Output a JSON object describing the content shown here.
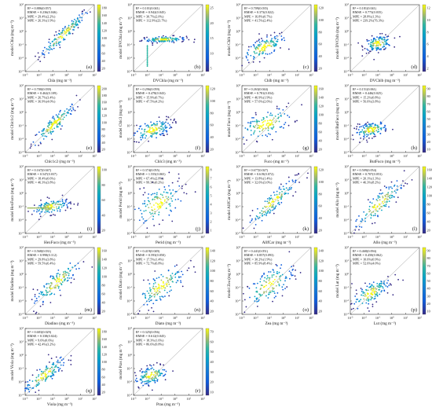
{
  "chart_data": [
    {
      "id": "a",
      "label": "(a)",
      "xlabel": "Chla (mg m⁻³)",
      "ylabel": "model Chla (mg m⁻³)",
      "stats": [
        "R² = 0.886(0.057)",
        "RMSE = 0.236(0.046)",
        "MPE = 29.4%(2.2%)",
        "MPE = 26.3%(1.9%)"
      ],
      "cbar_ticks": [
        "180",
        "160",
        "140",
        "120",
        "100",
        "80",
        "60",
        "40",
        "20"
      ],
      "type": "scatter",
      "x_exp": [
        -3,
        -2,
        -1,
        0,
        1,
        2
      ],
      "y_exp": [
        -3,
        -2,
        -1,
        0,
        1,
        2
      ],
      "cloud": {
        "center": [
          -0.2,
          -0.2
        ],
        "spread": [
          0.9,
          0.9
        ],
        "r": 0.95
      },
      "extra": null
    },
    {
      "id": "b",
      "label": "(b)",
      "xlabel": "DVChla (mg m⁻³)",
      "ylabel": "model DVChla (mg m⁻³)",
      "stats": [
        "R² = 0.101(0.041)",
        "RMSE = 0.942(0.045)",
        "MPE = 30.7%(2.0%)",
        "MPE = 112.9%(23.7%)"
      ],
      "cbar_ticks": [
        "25",
        "20",
        "15",
        "10",
        "5"
      ],
      "type": "scatter",
      "x_exp": [
        -3,
        -2,
        -1,
        0,
        1,
        2
      ],
      "y_exp": [
        -3,
        -2,
        -1,
        0,
        1,
        2
      ],
      "cloud": {
        "center": [
          -0.8,
          -0.6
        ],
        "spread": [
          0.8,
          0.12
        ],
        "r": 0.1
      },
      "extra": "vline"
    },
    {
      "id": "c",
      "label": "(c)",
      "xlabel": "Chlb (mg m⁻³)",
      "ylabel": "model Chlb (mg m⁻³)",
      "stats": [
        "R² = 0.709(0.035)",
        "RMSE = 0.373(0.022)",
        "MPE = 16.8%(0.7%)",
        "MPE = 41.5%(2.4%)"
      ],
      "cbar_ticks": [
        "120",
        "100",
        "80",
        "60",
        "40",
        "20"
      ],
      "type": "scatter",
      "x_exp": [
        -3,
        -2,
        -1,
        0,
        1,
        2
      ],
      "y_exp": [
        -3,
        -2,
        -1,
        0,
        1,
        2
      ],
      "cloud": {
        "center": [
          -1.4,
          -1.2
        ],
        "spread": [
          0.8,
          0.5
        ],
        "r": 0.7
      },
      "extra": null
    },
    {
      "id": "d",
      "label": "(d)",
      "xlabel": "DVChlb (mg m⁻³)",
      "ylabel": "model DVChlb (mg m⁻³)",
      "stats": [
        "R² = 0.181(0.041)",
        "RMSE = 0.773(0.035)",
        "MPE = 28.8%(1.3%)",
        "MPE = 239.2%(76.3%)"
      ],
      "cbar_ticks": [
        "12",
        "10",
        "8",
        "6",
        "4",
        "2"
      ],
      "type": "scatter",
      "x_exp": [
        -3,
        -2,
        -1,
        0,
        1,
        2
      ],
      "y_exp": [
        -3,
        -2,
        -1,
        0,
        1,
        2
      ],
      "cloud": {
        "center": [
          -1.0,
          -0.9
        ],
        "spread": [
          0.5,
          0.3
        ],
        "r": 0.3
      },
      "extra": null
    },
    {
      "id": "e",
      "label": "(e)",
      "xlabel": "Chlc1c2 (mg m⁻³)",
      "ylabel": "model Chlc1c2 (mg m⁻³)",
      "stats": [
        "R² = 0.700(0.039)",
        "RMSE = 0.462(0.109)",
        "MPE = 26.7%(3.4%)",
        "MPE = 36.9%(4.0%)"
      ],
      "cbar_ticks": [
        "200",
        "180",
        "160",
        "140",
        "120",
        "100",
        "80",
        "60",
        "40",
        "20"
      ],
      "type": "scatter",
      "x_exp": [
        -3,
        -2,
        -1,
        0,
        1,
        2
      ],
      "y_exp": [
        -3,
        -2,
        -1,
        0,
        1,
        2
      ],
      "cloud": {
        "center": [
          -0.9,
          -0.9
        ],
        "spread": [
          0.8,
          0.8
        ],
        "r": 0.9
      },
      "extra": null
    },
    {
      "id": "f",
      "label": "(f)",
      "xlabel": "Chlc3 (mg m⁻³)",
      "ylabel": "model Chlc3 (mg m⁻³)",
      "stats": [
        "R² = 0.296(0.059)",
        "RMSE = 0.478(0.043)",
        "MPE = 15.9%(0.7%)",
        "MPE = 47.5%(4.2%)"
      ],
      "cbar_ticks": [
        "120",
        "100",
        "80",
        "60",
        "40",
        "20"
      ],
      "type": "scatter",
      "x_exp": [
        -3,
        -2,
        -1,
        0,
        1,
        2
      ],
      "y_exp": [
        -3,
        -2,
        -1,
        0,
        1,
        2
      ],
      "cloud": {
        "center": [
          -1.6,
          -1.3
        ],
        "spread": [
          0.7,
          0.4
        ],
        "r": 0.5
      },
      "extra": null
    },
    {
      "id": "g",
      "label": "(g)",
      "xlabel": "Fuco (mg m⁻³)",
      "ylabel": "model Fuco (mg m⁻³)",
      "stats": [
        "R² = 0.263(0.044)",
        "RMSE = 0.781(0.034)",
        "MPE = 46.9%(1.9%)",
        "MPE = 57.6%(2.6%)"
      ],
      "cbar_ticks": [
        "160",
        "140",
        "120",
        "100",
        "80",
        "60",
        "40",
        "20"
      ],
      "type": "scatter",
      "x_exp": [
        -3,
        -2,
        -1,
        0,
        1,
        2
      ],
      "y_exp": [
        -3,
        -2,
        -1,
        0,
        1,
        2
      ],
      "cloud": {
        "center": [
          -1.3,
          -0.9
        ],
        "spread": [
          1.0,
          0.6
        ],
        "r": 0.55
      },
      "extra": null
    },
    {
      "id": "h",
      "label": "(h)",
      "xlabel": "ButFuco (mg m⁻³)",
      "ylabel": "model ButFuco (mg m⁻³)",
      "stats": [
        "R² = 0.151(0.061)",
        "RMSE = 0.446(0.025)",
        "MPE = 15.2%(0.8%)",
        "MPE = 56.6%(3.8%)"
      ],
      "cbar_ticks": [
        "90",
        "80",
        "70",
        "60",
        "50",
        "40",
        "30",
        "20",
        "10"
      ],
      "type": "scatter",
      "x_exp": [
        -3,
        -2,
        -1,
        0,
        1,
        2
      ],
      "y_exp": [
        -3,
        -2,
        -1,
        0,
        1,
        2
      ],
      "cloud": {
        "center": [
          -1.5,
          -1.3
        ],
        "spread": [
          0.6,
          0.3
        ],
        "r": 0.4
      },
      "extra": null
    },
    {
      "id": "i",
      "label": "(i)",
      "xlabel": "HexFuco (mg m⁻³)",
      "ylabel": "model HexFuco (mg m⁻³)",
      "stats": [
        "R² = 0.167(0.047)",
        "RMSE = 0.547(0.037)",
        "MPE = 18.4%(0.6%)",
        "MPE = 46.3%(3.8%)"
      ],
      "cbar_ticks": [
        "100",
        "80",
        "60",
        "40",
        "20"
      ],
      "type": "scatter",
      "x_exp": [
        -3,
        -2,
        -1,
        0,
        1,
        2
      ],
      "y_exp": [
        -3,
        -2,
        -1,
        0,
        1,
        2
      ],
      "cloud": {
        "center": [
          -1.1,
          -1.0
        ],
        "spread": [
          0.7,
          0.3
        ],
        "r": 0.4
      },
      "extra": "hline"
    },
    {
      "id": "j",
      "label": "(j)",
      "xlabel": "Perid (mg m⁻³)",
      "ylabel": "model Perid (mg m⁻³)",
      "stats": [
        "R² = 0.374(0.055)",
        "RMSE = 1.555(0.065)",
        "MPE = 67.4%(2.8%)",
        "MPE = 99.3%(0.2%)"
      ],
      "cbar_ticks": [
        "8",
        "7",
        "6",
        "5",
        "4",
        "3",
        "2",
        "1"
      ],
      "type": "scatter",
      "x_exp": [
        -3,
        -2,
        -1,
        0,
        1,
        2
      ],
      "y_exp": [
        -3,
        -2,
        -1,
        0,
        1,
        2
      ],
      "cloud": {
        "center": [
          -1.2,
          -0.8
        ],
        "spread": [
          0.9,
          0.8
        ],
        "r": 0.5
      },
      "extra": null
    },
    {
      "id": "k",
      "label": "(k)",
      "xlabel": "AllfCar (mg m⁻³)",
      "ylabel": "model AllfCar (mg m⁻³)",
      "stats": [
        "R² = 0.677(0.027)",
        "RMSE = 0.619(0.072)",
        "MPE = 13.8%(1.4%)",
        "MPE = 32.6%(3.0%)"
      ],
      "cbar_ticks": [
        "120",
        "100",
        "80",
        "60",
        "40",
        "20"
      ],
      "type": "scatter",
      "x_exp": [
        -3,
        -2,
        -1,
        0,
        1,
        2
      ],
      "y_exp": [
        -3,
        -2,
        -1,
        0,
        1,
        2
      ],
      "cloud": {
        "center": [
          -0.8,
          -0.7
        ],
        "spread": [
          0.9,
          0.9
        ],
        "r": 0.9
      },
      "extra": null
    },
    {
      "id": "l",
      "label": "(l)",
      "xlabel": "Allo (mg m⁻³)",
      "ylabel": "model Allo (mg m⁻³)",
      "stats": [
        "R² = 0.509(0.054)",
        "RMSE = 0.707(0.053)",
        "MPE = 20.1%(1.3%)",
        "MPE = 46.3%(8.2%)"
      ],
      "cbar_ticks": [
        "160",
        "140",
        "120",
        "100",
        "80",
        "60",
        "40",
        "20"
      ],
      "type": "scatter",
      "x_exp": [
        -3,
        -2,
        -1,
        0,
        1,
        2
      ],
      "y_exp": [
        -3,
        -2,
        -1,
        0,
        1,
        2
      ],
      "cloud": {
        "center": [
          -0.9,
          -0.8
        ],
        "spread": [
          0.9,
          0.9
        ],
        "r": 0.85
      },
      "extra": null
    },
    {
      "id": "m",
      "label": "(m)",
      "xlabel": "Diadino (mg m⁻³)",
      "ylabel": "model Diadino (mg m⁻³)",
      "stats": [
        "R² = 0.568(0.031)",
        "RMSE = 0.998(0.112)",
        "MPE = 29.8%(3.8%)",
        "MPE = 59.5%(6.4%)"
      ],
      "cbar_ticks": [
        "160",
        "140",
        "120",
        "100",
        "80",
        "60",
        "40",
        "20"
      ],
      "type": "scatter",
      "x_exp": [
        -3,
        -2,
        -1,
        0,
        1,
        2
      ],
      "y_exp": [
        -3,
        -2,
        -1,
        0,
        1,
        2
      ],
      "cloud": {
        "center": [
          -0.7,
          -0.6
        ],
        "spread": [
          0.9,
          0.9
        ],
        "r": 0.85
      },
      "extra": null
    },
    {
      "id": "n",
      "label": "(n)",
      "xlabel": "Diato (mg m⁻³)",
      "ylabel": "model Diato (mg m⁻³)",
      "stats": [
        "R² = 0.419(0.049)",
        "RMSE = 0.593(0.050)",
        "MPE = 17.5%(1.4%)",
        "MPE = 72.7%(6.8%)"
      ],
      "cbar_ticks": [
        "140",
        "120",
        "100",
        "80",
        "60",
        "40",
        "20"
      ],
      "type": "scatter",
      "x_exp": [
        -3,
        -2,
        -1,
        0,
        1,
        2
      ],
      "y_exp": [
        -3,
        -2,
        -1,
        0,
        1,
        2
      ],
      "cloud": {
        "center": [
          -1.0,
          -0.9
        ],
        "spread": [
          0.9,
          0.8
        ],
        "r": 0.7
      },
      "extra": null
    },
    {
      "id": "o",
      "label": "(o)",
      "xlabel": "Zea (mg m⁻³)",
      "ylabel": "model Zea (mg m⁻³)",
      "stats": [
        "R² = 0.441(0.051)",
        "RMSE = 0.857(0.093)",
        "MPE = 30.2%(1.9%)",
        "MPE = 85.9%(8.4%)"
      ],
      "cbar_ticks": [
        "140",
        "120",
        "100",
        "80",
        "60",
        "40",
        "20"
      ],
      "type": "scatter",
      "x_exp": [
        -3,
        -2,
        -1,
        0,
        1,
        2
      ],
      "y_exp": [
        -3,
        -2,
        -1,
        0,
        1,
        2
      ],
      "cloud": {
        "center": [
          -1.0,
          -0.8
        ],
        "spread": [
          0.9,
          0.8
        ],
        "r": 0.65
      },
      "extra": null
    },
    {
      "id": "p",
      "label": "(p)",
      "xlabel": "Lut (mg m⁻³)",
      "ylabel": "model Lut (mg m⁻³)",
      "stats": [
        "R² = 0.468(0.094)",
        "RMSE = 0.450(0.062)",
        "MPE = 10.6%(0.9%)",
        "MPE = 52.6%(4.0%)"
      ],
      "cbar_ticks": [
        "90",
        "80",
        "70",
        "60",
        "50",
        "40",
        "30",
        "20",
        "10"
      ],
      "type": "scatter",
      "x_exp": [
        -3,
        -2,
        -1,
        0,
        1,
        2
      ],
      "y_exp": [
        -3,
        -2,
        -1,
        0,
        1,
        2
      ],
      "cloud": {
        "center": [
          -1.5,
          -1.4
        ],
        "spread": [
          0.7,
          0.6
        ],
        "r": 0.7
      },
      "extra": null
    },
    {
      "id": "q",
      "label": "(q)",
      "xlabel": "Viola (mg m⁻³)",
      "ylabel": "model Viola (mg m⁻³)",
      "stats": [
        "R² = 0.683(0.029)",
        "RMSE = 0.338(0.024)",
        "MPE = 9.6%(0.6%)",
        "MPE = 42.4%(3.2%)"
      ],
      "cbar_ticks": [
        "180",
        "160",
        "140",
        "120",
        "100",
        "80",
        "60",
        "40",
        "20"
      ],
      "type": "scatter",
      "x_exp": [
        -3,
        -2,
        -1,
        0,
        1,
        2
      ],
      "y_exp": [
        -3,
        -2,
        -1,
        0,
        1,
        2
      ],
      "cloud": {
        "center": [
          -1.6,
          -1.5
        ],
        "spread": [
          0.8,
          0.7
        ],
        "r": 0.85
      },
      "extra": null
    },
    {
      "id": "r",
      "label": "(r)",
      "xlabel": "Pras (mg m⁻³)",
      "ylabel": "model Pras (mg m⁻³)",
      "stats": [
        "R² = 0.325(0.056)",
        "RMSE = 0.612(0.045)",
        "MPE = 18.3%(1.6%)",
        "MPE = 86.6%(9.8%)"
      ],
      "cbar_ticks": [
        "70",
        "60",
        "50",
        "40",
        "30",
        "20",
        "10"
      ],
      "type": "scatter",
      "x_exp": [
        -3,
        -2,
        -1,
        0,
        1,
        2
      ],
      "y_exp": [
        -3,
        -2,
        -1,
        0,
        1,
        2
      ],
      "cloud": {
        "center": [
          -1.7,
          -1.5
        ],
        "spread": [
          0.6,
          0.4
        ],
        "r": 0.4
      },
      "extra": null
    }
  ]
}
